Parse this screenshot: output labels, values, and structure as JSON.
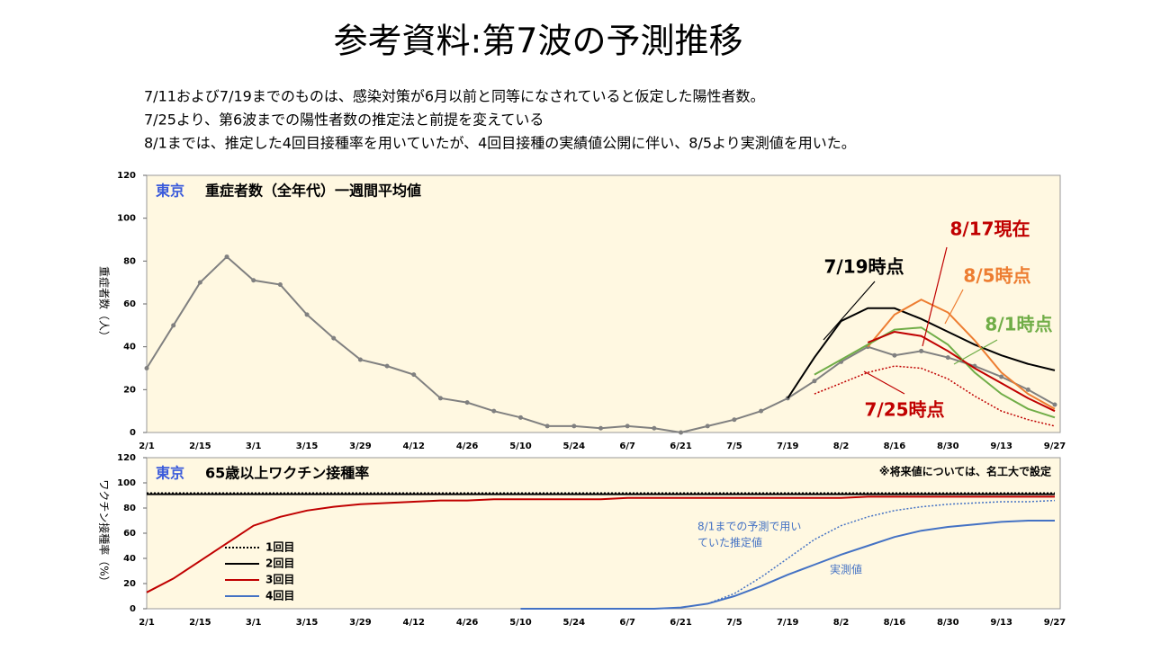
{
  "title": "参考資料:第7波の予測推移",
  "notes": [
    "7/11および7/19までのものは、感染対策が6月以前と同等になされていると仮定した陽性者数。",
    "7/25より、第6波までの陽性者数の推定法と前提を変えている",
    "8/1までは、推定した4回目接種率を用いていたが、4回目接種の実績値公開に伴い、8/5より実測値を用いた。"
  ],
  "chart_data": [
    {
      "type": "line",
      "region": "東京",
      "title": "重症者数（全年代）一週間平均値",
      "ylabel": "重症者数（人）",
      "categories": [
        "2/1",
        null,
        "2/15",
        null,
        "3/1",
        null,
        "3/15",
        null,
        "3/29",
        null,
        "4/12",
        null,
        "4/26",
        null,
        "5/10",
        null,
        "5/24",
        null,
        "6/7",
        null,
        "6/21",
        null,
        "7/5",
        null,
        "7/19",
        null,
        "8/2",
        null,
        "8/16",
        null,
        "8/30",
        null,
        "9/13",
        null,
        "9/27"
      ],
      "ylim": [
        0,
        120
      ],
      "yticks": [
        0,
        20,
        40,
        60,
        80,
        100,
        120
      ],
      "series": [
        {
          "color": "#808080",
          "markers": true,
          "values": [
            30,
            50,
            70,
            82,
            71,
            69,
            55,
            44,
            34,
            31,
            27,
            16,
            14,
            10,
            7,
            3,
            3,
            2,
            3,
            2,
            0,
            3,
            6,
            10,
            16,
            24,
            33,
            40,
            36,
            38,
            35,
            31,
            26,
            20,
            13
          ]
        },
        {
          "name": "7/19時点",
          "color": "#000000",
          "values": [
            null,
            null,
            null,
            null,
            null,
            null,
            null,
            null,
            null,
            null,
            null,
            null,
            null,
            null,
            null,
            null,
            null,
            null,
            null,
            null,
            null,
            null,
            null,
            null,
            16,
            35,
            52,
            58,
            58,
            53,
            47,
            41,
            36,
            32,
            29
          ]
        },
        {
          "name": "8/5時点",
          "color": "#ed7d31",
          "values": [
            null,
            null,
            null,
            null,
            null,
            null,
            null,
            null,
            null,
            null,
            null,
            null,
            null,
            null,
            null,
            null,
            null,
            null,
            null,
            null,
            null,
            null,
            null,
            null,
            null,
            null,
            null,
            40,
            55,
            62,
            56,
            43,
            28,
            18,
            11
          ]
        },
        {
          "name": "8/1時点",
          "color": "#70ad47",
          "values": [
            null,
            null,
            null,
            null,
            null,
            null,
            null,
            null,
            null,
            null,
            null,
            null,
            null,
            null,
            null,
            null,
            null,
            null,
            null,
            null,
            null,
            null,
            null,
            null,
            null,
            27,
            34,
            41,
            48,
            49,
            41,
            28,
            18,
            11,
            7
          ]
        },
        {
          "name": "8/17現在",
          "color": "#c00000",
          "values": [
            null,
            null,
            null,
            null,
            null,
            null,
            null,
            null,
            null,
            null,
            null,
            null,
            null,
            null,
            null,
            null,
            null,
            null,
            null,
            null,
            null,
            null,
            null,
            null,
            null,
            null,
            null,
            42,
            47,
            45,
            38,
            30,
            23,
            16,
            10
          ]
        },
        {
          "name": "7/25時点",
          "color": "#c00000",
          "dotted": true,
          "values": [
            null,
            null,
            null,
            null,
            null,
            null,
            null,
            null,
            null,
            null,
            null,
            null,
            null,
            null,
            null,
            null,
            null,
            null,
            null,
            null,
            null,
            null,
            null,
            null,
            null,
            18,
            23,
            28,
            31,
            30,
            25,
            17,
            10,
            6,
            3
          ]
        }
      ]
    },
    {
      "type": "line",
      "region": "東京",
      "title": "65歳以上ワクチン接種率",
      "ylabel": "ワクチン接種率（%）",
      "note": "※将来値については、名工大で設定",
      "annotations": [
        "8/1までの予測で用い",
        "ていた推定値",
        "実測値"
      ],
      "legend": "left",
      "categories": [
        "2/1",
        null,
        "2/15",
        null,
        "3/1",
        null,
        "3/15",
        null,
        "3/29",
        null,
        "4/12",
        null,
        "4/26",
        null,
        "5/10",
        null,
        "5/24",
        null,
        "6/7",
        null,
        "6/21",
        null,
        "7/5",
        null,
        "7/19",
        null,
        "8/2",
        null,
        "8/16",
        null,
        "8/30",
        null,
        "9/13",
        null,
        "9/27"
      ],
      "ylim": [
        0,
        120
      ],
      "yticks": [
        0,
        20,
        40,
        60,
        80,
        100,
        120
      ],
      "series": [
        {
          "name": "1回目",
          "color": "#000000",
          "dotted": true,
          "values": [
            92,
            92,
            92,
            92,
            92,
            92,
            92,
            92,
            92,
            92,
            92,
            92,
            92,
            92,
            92,
            92,
            92,
            92,
            92,
            92,
            92,
            92,
            92,
            92,
            92,
            92,
            92,
            92,
            92,
            92,
            92,
            92,
            92,
            92,
            92
          ]
        },
        {
          "name": "2回目",
          "color": "#000000",
          "values": [
            91,
            91,
            91,
            91,
            91,
            91,
            91,
            91,
            91,
            91,
            91,
            91,
            91,
            91,
            91,
            91,
            91,
            91,
            91,
            91,
            91,
            91,
            91,
            91,
            91,
            91,
            91,
            91,
            91,
            91,
            91,
            91,
            91,
            91,
            91
          ]
        },
        {
          "name": "3回目",
          "color": "#c00000",
          "values": [
            13,
            24,
            38,
            52,
            66,
            73,
            78,
            81,
            83,
            84,
            85,
            86,
            86,
            87,
            87,
            87,
            87,
            87,
            88,
            88,
            88,
            88,
            88,
            88,
            88,
            88,
            88,
            89,
            89,
            89,
            89,
            89,
            89,
            89,
            89
          ]
        },
        {
          "name": "4回目",
          "color": "#4472c4",
          "values": [
            null,
            null,
            null,
            null,
            null,
            null,
            null,
            null,
            null,
            null,
            null,
            null,
            null,
            null,
            0,
            0,
            0,
            0,
            0,
            0,
            1,
            4,
            10,
            18,
            27,
            35,
            43,
            50,
            57,
            62,
            65,
            67,
            69,
            70,
            70
          ]
        },
        {
          "color": "#4472c4",
          "dotted": true,
          "values": [
            null,
            null,
            null,
            null,
            null,
            null,
            null,
            null,
            null,
            null,
            null,
            null,
            null,
            null,
            null,
            null,
            null,
            null,
            null,
            null,
            null,
            4,
            12,
            25,
            40,
            55,
            66,
            73,
            78,
            81,
            83,
            84,
            85,
            85,
            86
          ]
        }
      ]
    }
  ]
}
